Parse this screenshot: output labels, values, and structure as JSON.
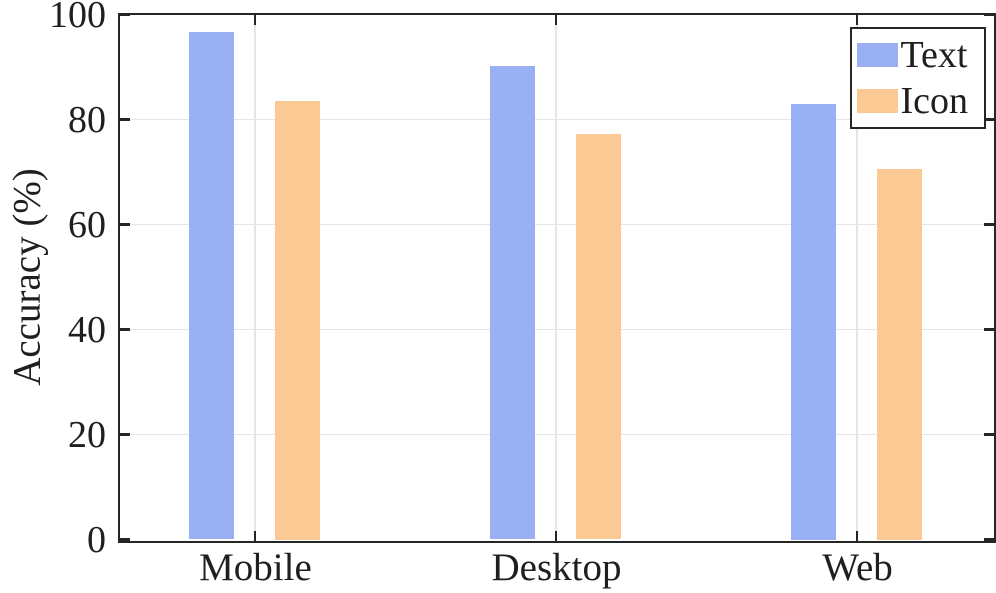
{
  "chart_data": {
    "type": "bar",
    "title": "",
    "xlabel": "",
    "ylabel": "Accuracy (%)",
    "categories": [
      "Mobile",
      "Desktop",
      "Web"
    ],
    "series": [
      {
        "name": "Text",
        "color": "#9AB0F4",
        "values": [
          96.6,
          90.1,
          83.0
        ]
      },
      {
        "name": "Icon",
        "color": "#FBC994",
        "values": [
          83.5,
          77.3,
          70.5
        ]
      }
    ],
    "ylim": [
      0,
      100
    ],
    "yticks": [
      0,
      20,
      40,
      60,
      80,
      100
    ],
    "grid": true,
    "legend_position": "top-right"
  },
  "colors": {
    "axis_line": "#262626",
    "grid_line": "#E6E6E6",
    "text": "#1F1F1F",
    "background": "#FFFFFF"
  }
}
